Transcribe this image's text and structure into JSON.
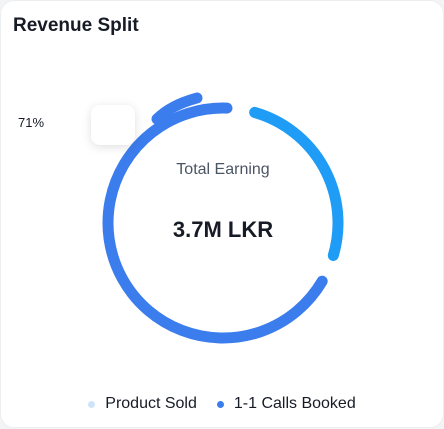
{
  "card": {
    "title": "Revenue Split"
  },
  "center": {
    "label": "Total Earning",
    "value": "3.7M LKR"
  },
  "tooltip": {
    "text": "71%"
  },
  "legend": {
    "items": [
      {
        "label": "Product Sold",
        "color": "#cfe4fb"
      },
      {
        "label": "1-1 Calls Booked",
        "color": "#3b7ded"
      }
    ]
  },
  "chart_data": {
    "type": "pie",
    "variant": "donut",
    "title": "Revenue Split",
    "series": [
      {
        "name": "Product Sold",
        "value": 29,
        "color": "#1f9cf5"
      },
      {
        "name": "1-1 Calls Booked",
        "value": 71,
        "color": "#3b7ded"
      }
    ],
    "hovered_label": "71%",
    "legend_position": "bottom"
  }
}
